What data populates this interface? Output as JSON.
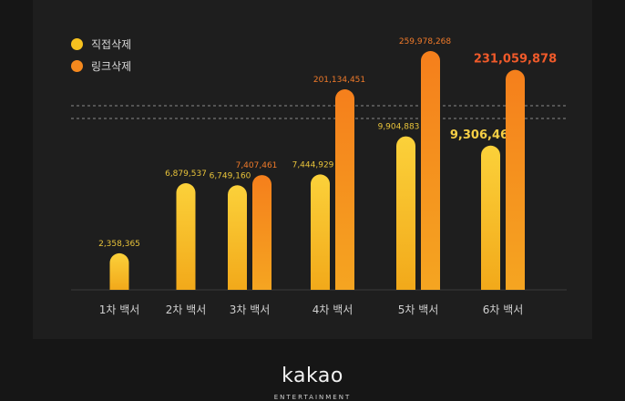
{
  "chart_data": {
    "type": "bar",
    "categories": [
      "1차 백서",
      "2차 백서",
      "3차 백서",
      "4차 백서",
      "5차 백서",
      "6차 백서"
    ],
    "series": [
      {
        "name": "직접삭제",
        "color": "#f7c21f",
        "values": [
          2358365,
          6879537,
          6749160,
          7444929,
          9904883,
          9306467
        ],
        "labels": [
          "2,358,365",
          "6,879,537",
          "6,749,160",
          "7,444,929",
          "9,904,883",
          "9,306,467"
        ]
      },
      {
        "name": "링크삭제",
        "color": "#f5891e",
        "values": [
          null,
          null,
          7407461,
          201134451,
          259978268,
          231059878
        ],
        "labels": [
          "",
          "",
          "7,407,461",
          "201,134,451",
          "259,978,268",
          "231,059,878"
        ]
      }
    ],
    "axis_break": true,
    "highlight_category": "6차 백서",
    "colors": {
      "background": "#161616",
      "panel": "#1e1e1e",
      "label_yellow": "#e8c33a",
      "label_orange": "#f07a2a",
      "label_highlight_orange": "#f05a2a",
      "label_highlight_yellow": "#f6cf45",
      "axis_label": "#cfcfcf"
    }
  },
  "logo": {
    "text": "kakao",
    "subtext": "ENTERTAINMENT"
  }
}
